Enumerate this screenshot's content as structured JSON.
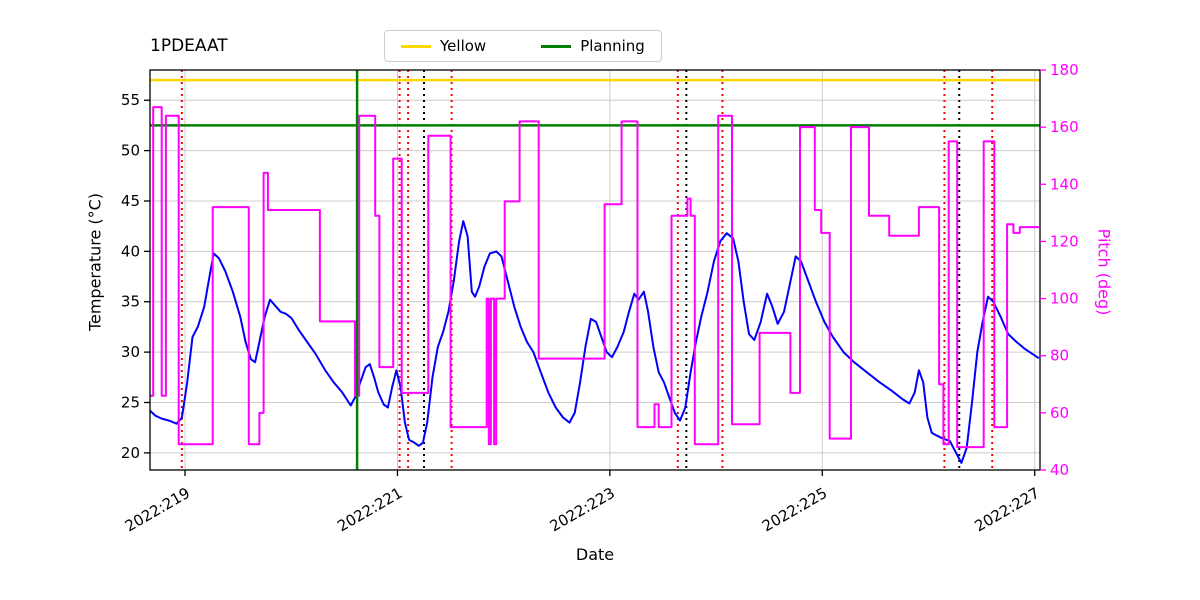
{
  "chart_data": {
    "type": "line",
    "title": "1PDEAAT",
    "xlabel": "Date",
    "ylabel_left": "Temperature (°C)",
    "ylabel_right": "Pitch (deg)",
    "right_axis_color": "#FF00FF",
    "grid": true,
    "legend": {
      "position": "upper center",
      "entries": [
        {
          "label": "Yellow",
          "color": "#FFD700"
        },
        {
          "label": "Planning",
          "color": "#008000"
        }
      ]
    },
    "x_range": [
      218.67,
      227.05
    ],
    "left_y_range": [
      18.3,
      58.0
    ],
    "right_y_range": [
      40,
      180
    ],
    "x_ticks": [
      219,
      221,
      223,
      225,
      227
    ],
    "x_tick_labels": [
      "2022:219",
      "2022:221",
      "2022:223",
      "2022:225",
      "2022:227"
    ],
    "left_y_ticks": [
      20,
      25,
      30,
      35,
      40,
      45,
      50,
      55
    ],
    "right_y_ticks": [
      40,
      60,
      80,
      100,
      120,
      140,
      160,
      180
    ],
    "limit_lines": {
      "yellow": {
        "label": "Yellow",
        "value": 57.0,
        "axis": "left",
        "color": "#FFD700"
      },
      "planning": {
        "label": "Planning",
        "value": 52.5,
        "axis": "left",
        "color": "#008000"
      }
    },
    "vertical_lines": {
      "green_solid": [
        220.62
      ],
      "red_dotted": [
        218.97,
        221.02,
        221.1,
        221.51,
        223.64,
        224.06,
        226.15,
        226.6
      ],
      "black_dotted": [
        221.25,
        223.72,
        226.29
      ]
    },
    "series": [
      {
        "name": "temperature",
        "color": "#0000FF",
        "axis": "left",
        "points": [
          [
            218.67,
            24.2
          ],
          [
            218.72,
            23.7
          ],
          [
            218.78,
            23.4
          ],
          [
            218.85,
            23.2
          ],
          [
            218.92,
            22.9
          ],
          [
            218.97,
            23.5
          ],
          [
            219.02,
            27.0
          ],
          [
            219.07,
            31.5
          ],
          [
            219.12,
            32.5
          ],
          [
            219.18,
            34.5
          ],
          [
            219.23,
            37.5
          ],
          [
            219.27,
            39.8
          ],
          [
            219.32,
            39.3
          ],
          [
            219.38,
            38.0
          ],
          [
            219.45,
            36.0
          ],
          [
            219.52,
            33.5
          ],
          [
            219.57,
            31.0
          ],
          [
            219.62,
            29.3
          ],
          [
            219.66,
            29.0
          ],
          [
            219.7,
            31.0
          ],
          [
            219.75,
            33.5
          ],
          [
            219.8,
            35.2
          ],
          [
            219.85,
            34.6
          ],
          [
            219.9,
            34.0
          ],
          [
            219.95,
            33.8
          ],
          [
            220.0,
            33.4
          ],
          [
            220.07,
            32.2
          ],
          [
            220.15,
            31.0
          ],
          [
            220.23,
            29.8
          ],
          [
            220.32,
            28.2
          ],
          [
            220.4,
            27.0
          ],
          [
            220.48,
            26.0
          ],
          [
            220.53,
            25.2
          ],
          [
            220.56,
            24.7
          ],
          [
            220.6,
            25.5
          ],
          [
            220.65,
            27.0
          ],
          [
            220.7,
            28.5
          ],
          [
            220.74,
            28.8
          ],
          [
            220.78,
            27.5
          ],
          [
            220.82,
            26.0
          ],
          [
            220.87,
            24.8
          ],
          [
            220.91,
            24.5
          ],
          [
            220.95,
            26.5
          ],
          [
            220.99,
            28.2
          ],
          [
            221.03,
            26.5
          ],
          [
            221.07,
            23.0
          ],
          [
            221.11,
            21.3
          ],
          [
            221.16,
            21.0
          ],
          [
            221.2,
            20.7
          ],
          [
            221.24,
            21.0
          ],
          [
            221.28,
            23.0
          ],
          [
            221.33,
            27.5
          ],
          [
            221.38,
            30.5
          ],
          [
            221.43,
            32.0
          ],
          [
            221.48,
            34.0
          ],
          [
            221.53,
            37.0
          ],
          [
            221.58,
            41.0
          ],
          [
            221.62,
            43.0
          ],
          [
            221.66,
            41.5
          ],
          [
            221.7,
            36.0
          ],
          [
            221.73,
            35.5
          ],
          [
            221.77,
            36.5
          ],
          [
            221.82,
            38.5
          ],
          [
            221.87,
            39.8
          ],
          [
            221.93,
            40.0
          ],
          [
            221.98,
            39.5
          ],
          [
            222.04,
            37.0
          ],
          [
            222.1,
            34.5
          ],
          [
            222.16,
            32.5
          ],
          [
            222.22,
            31.0
          ],
          [
            222.28,
            30.0
          ],
          [
            222.35,
            28.0
          ],
          [
            222.42,
            26.0
          ],
          [
            222.49,
            24.5
          ],
          [
            222.56,
            23.5
          ],
          [
            222.62,
            23.0
          ],
          [
            222.67,
            24.0
          ],
          [
            222.72,
            27.0
          ],
          [
            222.77,
            30.5
          ],
          [
            222.82,
            33.3
          ],
          [
            222.87,
            33.0
          ],
          [
            222.92,
            31.5
          ],
          [
            222.97,
            30.0
          ],
          [
            223.02,
            29.5
          ],
          [
            223.07,
            30.5
          ],
          [
            223.13,
            32.0
          ],
          [
            223.18,
            34.0
          ],
          [
            223.23,
            35.8
          ],
          [
            223.27,
            35.2
          ],
          [
            223.32,
            36.0
          ],
          [
            223.36,
            34.0
          ],
          [
            223.41,
            30.5
          ],
          [
            223.46,
            28.0
          ],
          [
            223.51,
            27.0
          ],
          [
            223.56,
            25.5
          ],
          [
            223.61,
            24.0
          ],
          [
            223.66,
            23.2
          ],
          [
            223.71,
            24.5
          ],
          [
            223.76,
            28.0
          ],
          [
            223.81,
            31.0
          ],
          [
            223.86,
            33.5
          ],
          [
            223.92,
            36.0
          ],
          [
            223.98,
            39.0
          ],
          [
            224.04,
            41.0
          ],
          [
            224.1,
            41.8
          ],
          [
            224.16,
            41.3
          ],
          [
            224.21,
            39.0
          ],
          [
            224.26,
            35.0
          ],
          [
            224.31,
            31.8
          ],
          [
            224.36,
            31.2
          ],
          [
            224.42,
            33.0
          ],
          [
            224.48,
            35.8
          ],
          [
            224.53,
            34.5
          ],
          [
            224.58,
            32.8
          ],
          [
            224.64,
            34.0
          ],
          [
            224.7,
            37.0
          ],
          [
            224.75,
            39.5
          ],
          [
            224.8,
            39.0
          ],
          [
            224.87,
            37.0
          ],
          [
            224.94,
            35.0
          ],
          [
            225.02,
            33.0
          ],
          [
            225.1,
            31.5
          ],
          [
            225.2,
            30.0
          ],
          [
            225.3,
            29.0
          ],
          [
            225.42,
            28.0
          ],
          [
            225.54,
            27.0
          ],
          [
            225.65,
            26.2
          ],
          [
            225.76,
            25.3
          ],
          [
            225.82,
            24.9
          ],
          [
            225.87,
            26.0
          ],
          [
            225.91,
            28.2
          ],
          [
            225.95,
            27.0
          ],
          [
            225.99,
            23.5
          ],
          [
            226.03,
            22.0
          ],
          [
            226.08,
            21.7
          ],
          [
            226.14,
            21.4
          ],
          [
            226.2,
            21.2
          ],
          [
            226.26,
            20.0
          ],
          [
            226.31,
            19.0
          ],
          [
            226.36,
            20.5
          ],
          [
            226.41,
            25.0
          ],
          [
            226.46,
            30.0
          ],
          [
            226.51,
            33.0
          ],
          [
            226.56,
            35.5
          ],
          [
            226.61,
            35.0
          ],
          [
            226.68,
            33.5
          ],
          [
            226.75,
            31.8
          ],
          [
            226.83,
            31.0
          ],
          [
            226.91,
            30.3
          ],
          [
            226.98,
            29.8
          ],
          [
            227.04,
            29.4
          ]
        ]
      },
      {
        "name": "pitch",
        "color": "#FF00FF",
        "axis": "right",
        "points": [
          [
            218.67,
            66
          ],
          [
            218.7,
            66
          ],
          [
            218.7,
            167
          ],
          [
            218.78,
            167
          ],
          [
            218.78,
            66
          ],
          [
            218.82,
            66
          ],
          [
            218.82,
            164
          ],
          [
            218.94,
            164
          ],
          [
            218.94,
            49
          ],
          [
            219.26,
            49
          ],
          [
            219.26,
            132
          ],
          [
            219.6,
            132
          ],
          [
            219.6,
            49
          ],
          [
            219.7,
            49
          ],
          [
            219.7,
            60
          ],
          [
            219.74,
            60
          ],
          [
            219.74,
            144
          ],
          [
            219.78,
            144
          ],
          [
            219.78,
            131
          ],
          [
            220.27,
            131
          ],
          [
            220.27,
            92
          ],
          [
            220.6,
            92
          ],
          [
            220.6,
            66
          ],
          [
            220.64,
            66
          ],
          [
            220.64,
            164
          ],
          [
            220.79,
            164
          ],
          [
            220.79,
            129
          ],
          [
            220.83,
            129
          ],
          [
            220.83,
            76
          ],
          [
            220.96,
            76
          ],
          [
            220.96,
            149
          ],
          [
            221.04,
            149
          ],
          [
            221.04,
            67
          ],
          [
            221.29,
            67
          ],
          [
            221.29,
            157
          ],
          [
            221.5,
            157
          ],
          [
            221.5,
            55
          ],
          [
            221.84,
            55
          ],
          [
            221.84,
            100
          ],
          [
            221.86,
            100
          ],
          [
            221.86,
            49
          ],
          [
            221.88,
            49
          ],
          [
            221.88,
            100
          ],
          [
            221.91,
            100
          ],
          [
            221.91,
            49
          ],
          [
            221.93,
            49
          ],
          [
            221.93,
            100
          ],
          [
            222.01,
            100
          ],
          [
            222.01,
            134
          ],
          [
            222.15,
            134
          ],
          [
            222.15,
            162
          ],
          [
            222.33,
            162
          ],
          [
            222.33,
            79
          ],
          [
            222.95,
            79
          ],
          [
            222.95,
            133
          ],
          [
            223.11,
            133
          ],
          [
            223.11,
            162
          ],
          [
            223.26,
            162
          ],
          [
            223.26,
            55
          ],
          [
            223.42,
            55
          ],
          [
            223.42,
            63
          ],
          [
            223.46,
            63
          ],
          [
            223.46,
            55
          ],
          [
            223.58,
            55
          ],
          [
            223.58,
            129
          ],
          [
            223.73,
            129
          ],
          [
            223.73,
            135
          ],
          [
            223.76,
            135
          ],
          [
            223.76,
            129
          ],
          [
            223.8,
            129
          ],
          [
            223.8,
            49
          ],
          [
            224.02,
            49
          ],
          [
            224.02,
            164
          ],
          [
            224.15,
            164
          ],
          [
            224.15,
            56
          ],
          [
            224.41,
            56
          ],
          [
            224.41,
            88
          ],
          [
            224.7,
            88
          ],
          [
            224.7,
            67
          ],
          [
            224.79,
            67
          ],
          [
            224.79,
            160
          ],
          [
            224.93,
            160
          ],
          [
            224.93,
            131
          ],
          [
            224.99,
            131
          ],
          [
            224.99,
            123
          ],
          [
            225.07,
            123
          ],
          [
            225.07,
            51
          ],
          [
            225.27,
            51
          ],
          [
            225.27,
            160
          ],
          [
            225.44,
            160
          ],
          [
            225.44,
            129
          ],
          [
            225.63,
            129
          ],
          [
            225.63,
            122
          ],
          [
            225.91,
            122
          ],
          [
            225.91,
            132
          ],
          [
            226.1,
            132
          ],
          [
            226.1,
            70
          ],
          [
            226.14,
            70
          ],
          [
            226.14,
            49
          ],
          [
            226.19,
            49
          ],
          [
            226.19,
            155
          ],
          [
            226.27,
            155
          ],
          [
            226.27,
            48
          ],
          [
            226.52,
            48
          ],
          [
            226.52,
            155
          ],
          [
            226.62,
            155
          ],
          [
            226.62,
            55
          ],
          [
            226.74,
            55
          ],
          [
            226.74,
            126
          ],
          [
            226.8,
            126
          ],
          [
            226.8,
            123
          ],
          [
            226.86,
            123
          ],
          [
            226.86,
            125
          ],
          [
            227.04,
            125
          ]
        ]
      }
    ]
  }
}
